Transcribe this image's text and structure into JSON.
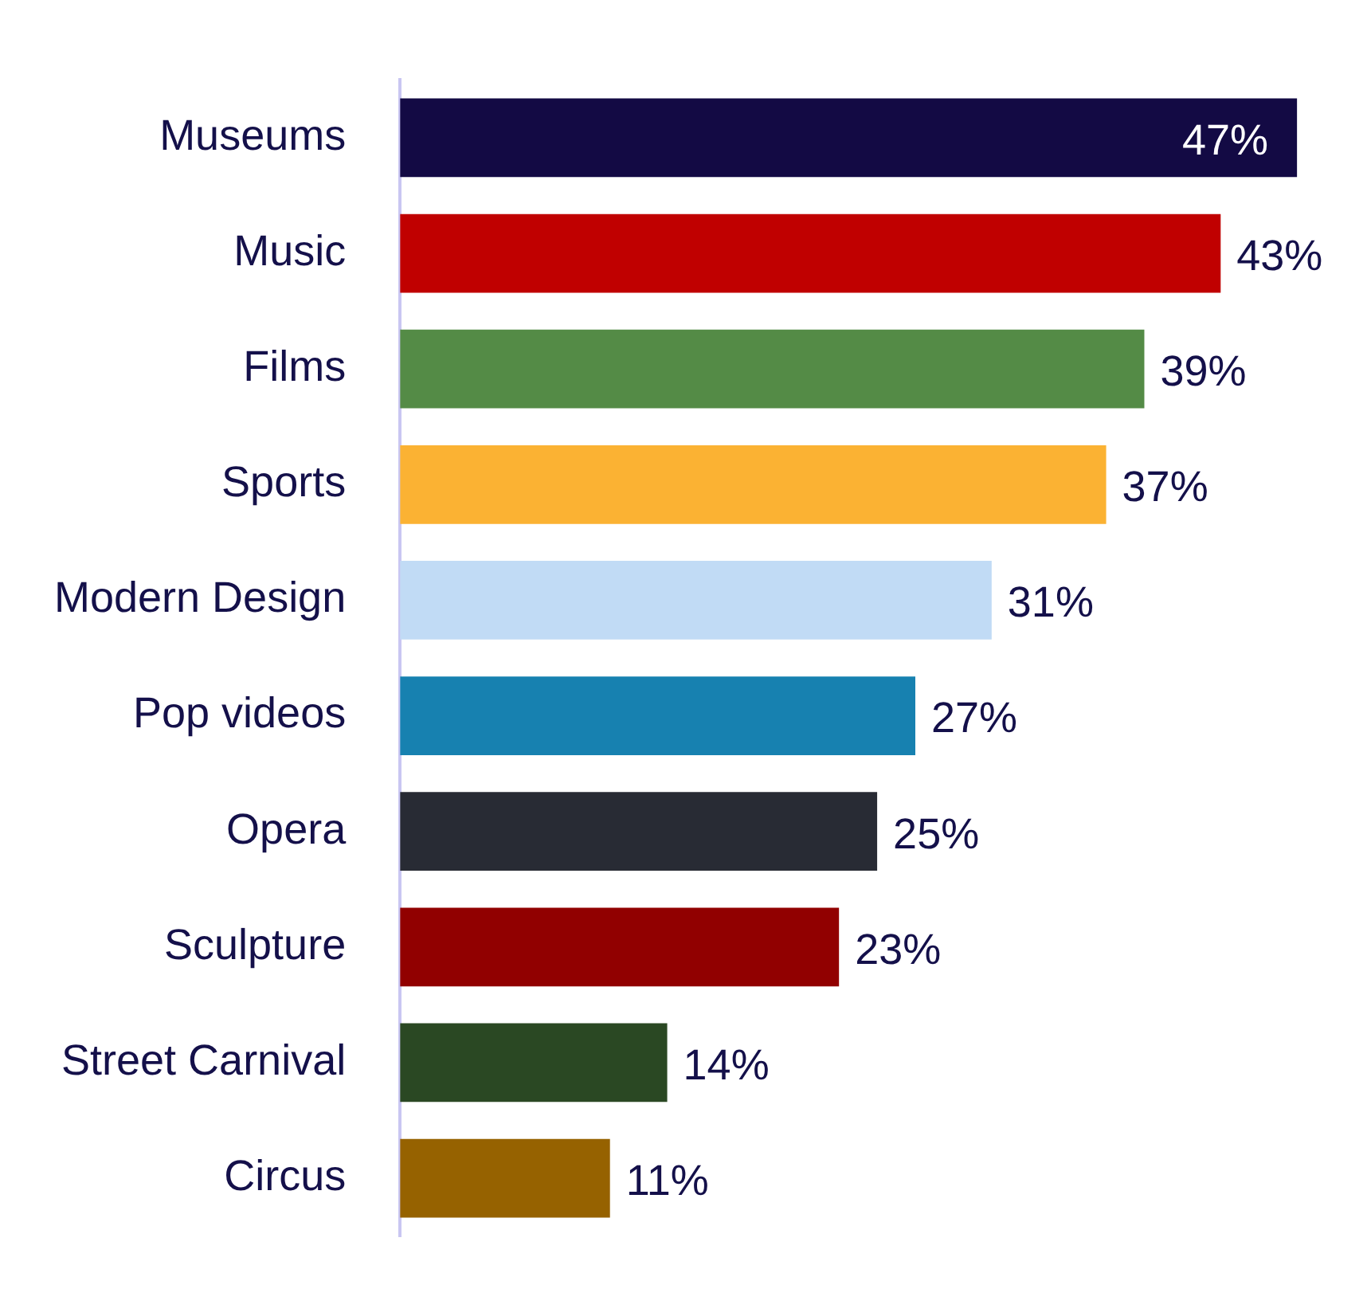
{
  "chart_data": {
    "type": "bar",
    "orientation": "horizontal",
    "categories": [
      "Museums",
      "Music",
      "Films",
      "Sports",
      "Modern Design",
      "Pop videos",
      "Opera",
      "Sculpture",
      "Street Carnival",
      "Circus"
    ],
    "values": [
      47,
      43,
      39,
      37,
      31,
      27,
      25,
      23,
      14,
      11
    ],
    "colors": [
      "#130a44",
      "#c00000",
      "#548b46",
      "#fbb233",
      "#c1dbf5",
      "#1781b0",
      "#282b34",
      "#910000",
      "#2a4823",
      "#966200"
    ],
    "value_labels": [
      "47%",
      "43%",
      "39%",
      "37%",
      "31%",
      "27%",
      "25%",
      "23%",
      "14%",
      "11%"
    ],
    "tick_labels": "y",
    "grid": false,
    "legend": false
  }
}
